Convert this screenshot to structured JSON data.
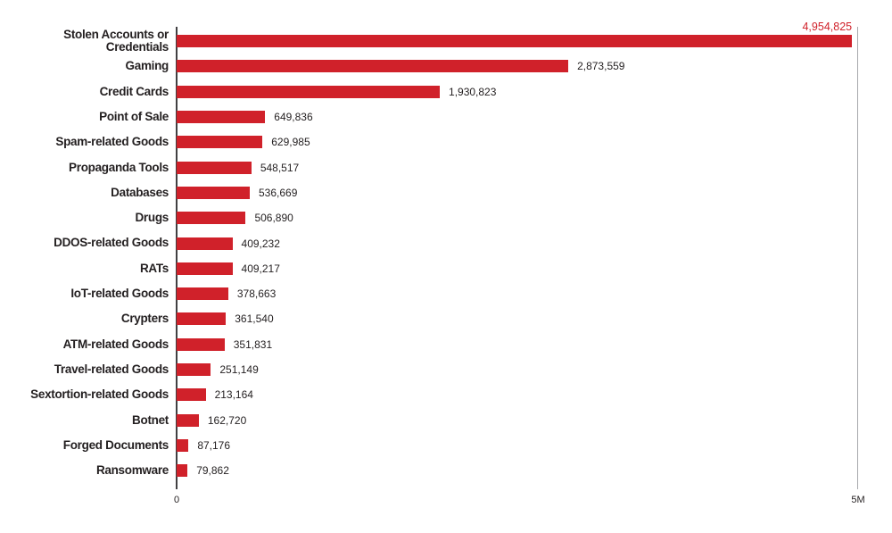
{
  "chart_data": {
    "type": "bar",
    "orientation": "horizontal",
    "title": "",
    "xlabel": "",
    "ylabel": "",
    "xlim": [
      0,
      5000000
    ],
    "x_ticks": [
      "0",
      "5M"
    ],
    "grid": "single right gridline at 5M",
    "bar_color": "#d0212a",
    "label_color": "#231f20",
    "top_value_label_color": "#d0212a",
    "top_value_label_position": "above-bar-right",
    "categories": [
      "Stolen Accounts or\nCredentials",
      "Gaming",
      "Credit Cards",
      "Point of Sale",
      "Spam-related Goods",
      "Propaganda Tools",
      "Databases",
      "Drugs",
      "DDOS-related Goods",
      "RATs",
      "IoT-related Goods",
      "Crypters",
      "ATM-related Goods",
      "Travel-related Goods",
      "Sextortion-related Goods",
      "Botnet",
      "Forged Documents",
      "Ransomware"
    ],
    "values": [
      4954825,
      2873559,
      1930823,
      649836,
      629985,
      548517,
      536669,
      506890,
      409232,
      409217,
      378663,
      361540,
      351831,
      251149,
      213164,
      162720,
      87176,
      79862
    ],
    "value_labels": [
      "4,954,825",
      "2,873,559",
      "1,930,823",
      "649,836",
      "629,985",
      "548,517",
      "536,669",
      "506,890",
      "409,232",
      "409,217",
      "378,663",
      "361,540",
      "351,831",
      "251,149",
      "213,164",
      "162,720",
      "87,176",
      "79,862"
    ]
  }
}
